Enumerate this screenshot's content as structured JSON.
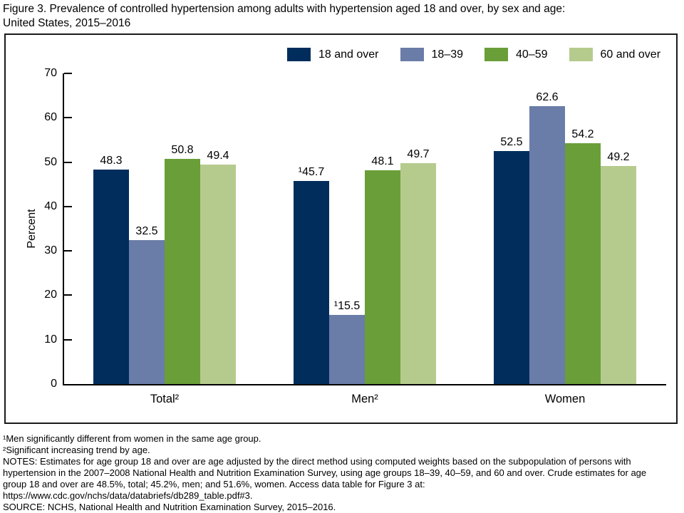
{
  "figure": {
    "title_line1": "Figure 3. Prevalence of controlled hypertension among adults with hypertension aged 18 and over, by sex and age:",
    "title_line2": "United States, 2015–2016"
  },
  "chart_data": {
    "type": "bar",
    "title": "Figure 3. Prevalence of controlled hypertension among adults with hypertension aged 18 and over, by sex and age: United States, 2015–2016",
    "xlabel": "",
    "ylabel": "Percent",
    "ylim": [
      0,
      70
    ],
    "yticks": [
      0,
      10,
      20,
      30,
      40,
      50,
      60,
      70
    ],
    "grid": false,
    "legend_position": "top-right-inside",
    "categories": [
      "Total²",
      "Men²",
      "Women"
    ],
    "series": [
      {
        "name": "18 and over",
        "color": "#002d5c",
        "values": [
          48.3,
          45.7,
          52.5
        ],
        "value_labels": [
          "48.3",
          "¹45.7",
          "52.5"
        ]
      },
      {
        "name": "18–39",
        "color": "#6a7ca8",
        "values": [
          32.5,
          15.5,
          62.6
        ],
        "value_labels": [
          "32.5",
          "¹15.5",
          "62.6"
        ]
      },
      {
        "name": "40–59",
        "color": "#6a9e38",
        "values": [
          50.8,
          48.1,
          54.2
        ],
        "value_labels": [
          "50.8",
          "48.1",
          "54.2"
        ]
      },
      {
        "name": "60 and over",
        "color": "#b5cb8d",
        "values": [
          49.4,
          49.7,
          49.2
        ],
        "value_labels": [
          "49.4",
          "49.7",
          "49.2"
        ]
      }
    ]
  },
  "footnotes": {
    "lines": [
      "¹Men significantly different from women in the same age group.",
      "²Significant increasing trend by age.",
      "NOTES: Estimates for age group 18 and over are age adjusted by the direct method using computed weights based on the subpopulation of persons with",
      "hypertension in the 2007–2008 National Health and Nutrition Examination Survey, using age groups 18–39, 40–59, and 60 and over. Crude estimates for age",
      "group 18 and over are 48.5%, total; 45.2%, men; and 51.6%, women. Access data table for Figure 3 at:",
      "https://www.cdc.gov/nchs/data/databriefs/db289_table.pdf#3.",
      "SOURCE: NCHS, National Health and Nutrition Examination Survey, 2015–2016."
    ]
  }
}
